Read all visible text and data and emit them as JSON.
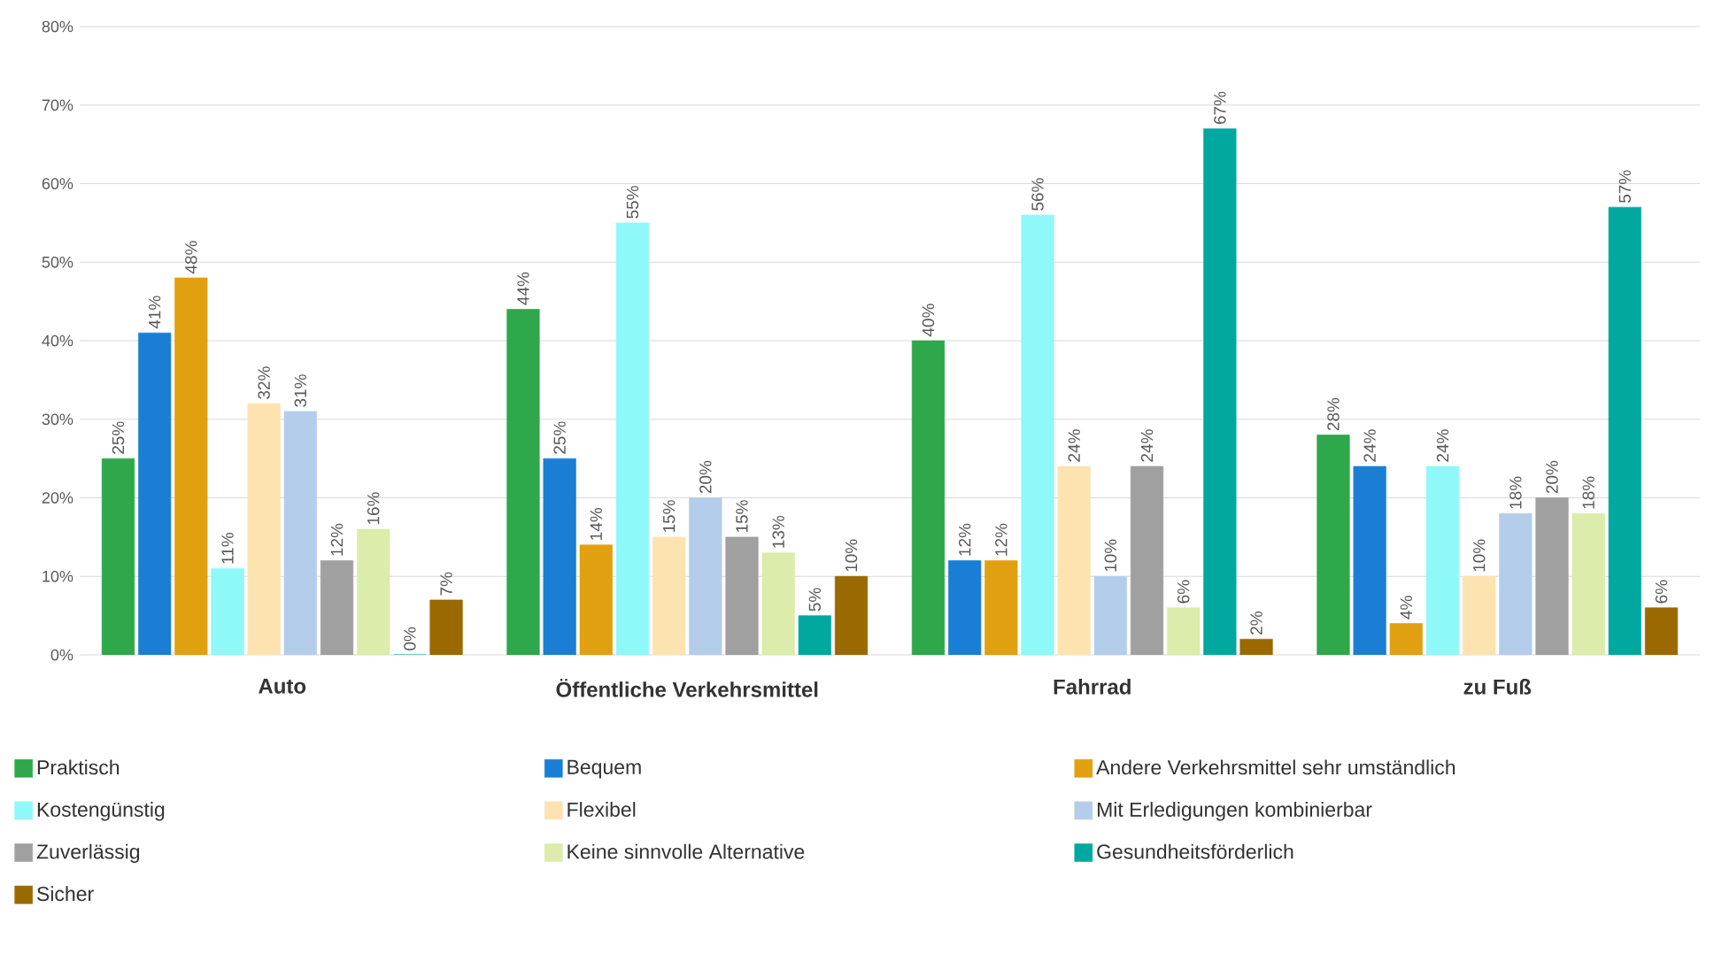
{
  "chart_data": {
    "type": "bar",
    "categories": [
      "Auto",
      "Öffentliche Verkehrsmittel",
      "Fahrrad",
      "zu Fuß"
    ],
    "series": [
      {
        "name": "Praktisch",
        "color": "#2EA84A",
        "values": [
          25,
          44,
          40,
          28
        ],
        "value_labels": [
          "25%",
          "44%",
          "40%",
          "28%"
        ]
      },
      {
        "name": "Bequem",
        "color": "#1A7FD4",
        "values": [
          41,
          25,
          12,
          24
        ],
        "value_labels": [
          "41%",
          "25%",
          "12%",
          "24%"
        ]
      },
      {
        "name": "Andere Verkehrsmittel sehr umständlich",
        "color": "#E0A010",
        "values": [
          48,
          14,
          12,
          4
        ],
        "value_labels": [
          "48%",
          "14%",
          "12%",
          "4%"
        ]
      },
      {
        "name": "Kostengünstig",
        "color": "#8FF8F8",
        "values": [
          11,
          55,
          56,
          24
        ],
        "value_labels": [
          "11%",
          "55%",
          "56%",
          "24%"
        ]
      },
      {
        "name": "Flexibel",
        "color": "#FDE3B0",
        "values": [
          32,
          15,
          24,
          10
        ],
        "value_labels": [
          "32%",
          "15%",
          "24%",
          "10%"
        ]
      },
      {
        "name": "Mit Erledigungen kombinierbar",
        "color": "#B4CDEB",
        "values": [
          31,
          20,
          10,
          18
        ],
        "value_labels": [
          "31%",
          "20%",
          "10%",
          "18%"
        ]
      },
      {
        "name": "Zuverlässig",
        "color": "#A0A0A0",
        "values": [
          12,
          15,
          24,
          20
        ],
        "value_labels": [
          "12%",
          "15%",
          "24%",
          "20%"
        ]
      },
      {
        "name": "Keine sinnvolle Alternative",
        "color": "#DCECAA",
        "values": [
          16,
          13,
          6,
          18
        ],
        "value_labels": [
          "16%",
          "13%",
          "6%",
          "18%"
        ]
      },
      {
        "name": "Gesundheitsförderlich",
        "color": "#00A8A0",
        "values": [
          0,
          5,
          67,
          57
        ],
        "value_labels": [
          "0%",
          "5%",
          "67%",
          "57%"
        ]
      },
      {
        "name": "Sicher",
        "color": "#9A6A00",
        "values": [
          7,
          10,
          2,
          6
        ],
        "value_labels": [
          "7%",
          "10%",
          "2%",
          "6%"
        ]
      }
    ],
    "ylim": [
      0,
      80
    ],
    "yticks": [
      {
        "value": 0,
        "label": "0%"
      },
      {
        "value": 10,
        "label": "10%"
      },
      {
        "value": 20,
        "label": "20%"
      },
      {
        "value": 30,
        "label": "30%"
      },
      {
        "value": 40,
        "label": "40%"
      },
      {
        "value": 50,
        "label": "50%"
      },
      {
        "value": 60,
        "label": "60%"
      },
      {
        "value": 70,
        "label": "70%"
      },
      {
        "value": 80,
        "label": "80%"
      }
    ],
    "grid": "y",
    "legend": "bottom"
  }
}
